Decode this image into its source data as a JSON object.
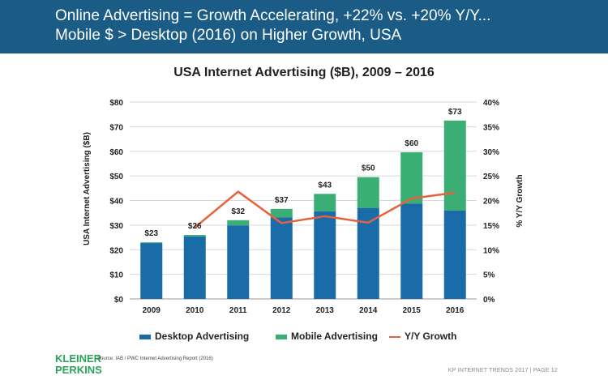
{
  "header": {
    "line1": "Online Advertising = Growth Accelerating, +22% vs. +20% Y/Y...",
    "line2": "Mobile $ > Desktop (2016) on Higher Growth, USA"
  },
  "colors": {
    "header_bg": "#1a5c86",
    "desktop": "#1a6ca8",
    "mobile": "#3aae74",
    "growth": "#e8603c"
  },
  "chart_data": {
    "type": "bar",
    "stacked": true,
    "title": "USA Internet Advertising ($B), 2009 – 2016",
    "ylabel": "USA Internet Advertising ($B)",
    "y2label": "% Y/Y Growth",
    "categories": [
      "2009",
      "2010",
      "2011",
      "2012",
      "2013",
      "2014",
      "2015",
      "2016"
    ],
    "ylim": [
      0,
      80
    ],
    "y2lim": [
      0,
      40
    ],
    "yticks": [
      "$0",
      "$10",
      "$20",
      "$30",
      "$40",
      "$50",
      "$60",
      "$70",
      "$80"
    ],
    "y2ticks": [
      "0%",
      "5%",
      "10%",
      "15%",
      "20%",
      "25%",
      "30%",
      "35%",
      "40%"
    ],
    "series": [
      {
        "name": "Desktop Advertising",
        "values": [
          22.7,
          25.4,
          29.9,
          33.1,
          35.6,
          37.0,
          38.8,
          35.9
        ]
      },
      {
        "name": "Mobile Advertising",
        "values": [
          0.3,
          0.6,
          2.1,
          3.5,
          7.1,
          12.5,
          20.8,
          36.6
        ]
      }
    ],
    "line": {
      "name": "Y/Y Growth",
      "values": [
        null,
        14.5,
        21.8,
        15.4,
        16.8,
        15.5,
        20.4,
        21.6
      ]
    },
    "total_labels": [
      "$23",
      "$26",
      "$32",
      "$37",
      "$43",
      "$50",
      "$60",
      "$73"
    ],
    "grid": true,
    "legend": "bottom"
  },
  "legend": {
    "desktop_label": "Desktop Advertising",
    "mobile_label": "Mobile Advertising",
    "growth_label": "Y/Y Growth"
  },
  "logo": {
    "line1": "KLEINER",
    "line2": "PERKINS"
  },
  "source": "Source: IAB / PWC Internet Advertising Report (2016)",
  "footer": "KP INTERNET TRENDS 2017  |  PAGE 12"
}
